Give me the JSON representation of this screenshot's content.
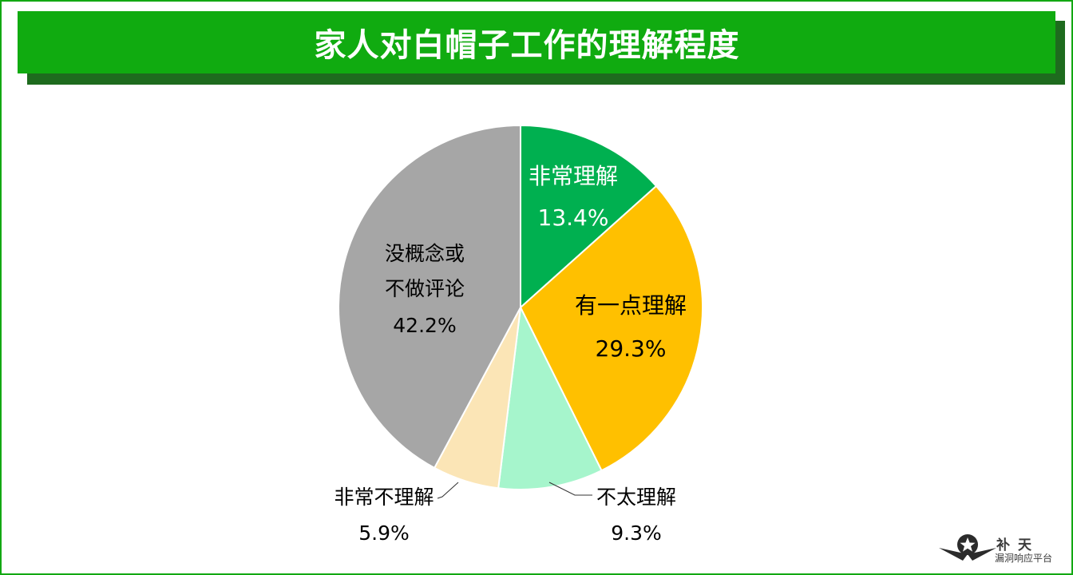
{
  "page": {
    "title": "家人对白帽子工作的理解程度"
  },
  "chart_data": {
    "type": "pie",
    "title": "家人对白帽子工作的理解程度",
    "slices": [
      {
        "label": "非常理解",
        "value": 13.4,
        "value_label": "13.4%",
        "color": "#00b050",
        "label_color": "#ffffff"
      },
      {
        "label": "有一点理解",
        "value": 29.3,
        "value_label": "29.3%",
        "color": "#ffc000",
        "label_color": "#000000"
      },
      {
        "label": "不太理解",
        "value": 9.3,
        "value_label": "9.3%",
        "color": "#a6f5cc",
        "label_color": "#000000"
      },
      {
        "label": "非常不理解",
        "value": 5.9,
        "value_label": "5.9%",
        "color": "#fbe5b6",
        "label_color": "#000000"
      },
      {
        "label": "没概念或不做评论",
        "label_lines": [
          "没概念或",
          "不做评论"
        ],
        "value": 42.2,
        "value_label": "42.2%",
        "color": "#a6a6a6",
        "label_color": "#000000"
      }
    ],
    "start_angle": "12 o'clock",
    "direction": "clockwise",
    "legend": "none"
  },
  "watermark": {
    "line1": "补天",
    "line2": "漏洞响应平台"
  },
  "colors": {
    "banner": "#10ab10",
    "banner_shadow": "#1e6b1e",
    "frame": "#12a812"
  }
}
